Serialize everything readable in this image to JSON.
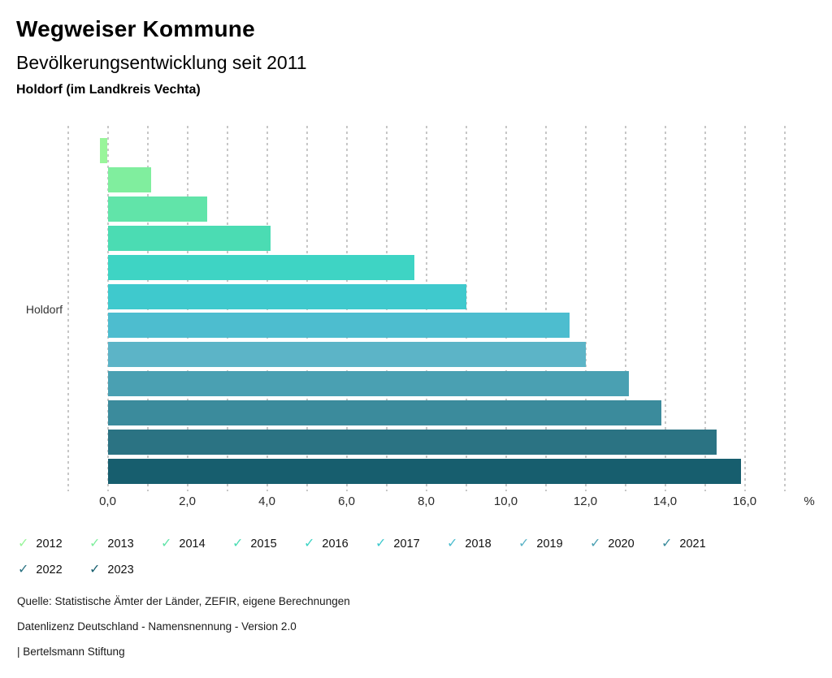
{
  "header": {
    "title": "Wegweiser Kommune",
    "subtitle": "Bevölkerungsentwicklung seit 2011",
    "region": "Holdorf (im Landkreis Vechta)"
  },
  "chart_data": {
    "type": "bar",
    "orientation": "horizontal",
    "title": "Bevölkerungsentwicklung seit 2011",
    "category": "Holdorf",
    "unit": "%",
    "xlim": [
      -1,
      17
    ],
    "grid": {
      "style": "dashed-vertical",
      "step": 1.0
    },
    "x_ticks": [
      {
        "value": 0,
        "label": "0,0"
      },
      {
        "value": 2,
        "label": "2,0"
      },
      {
        "value": 4,
        "label": "4,0"
      },
      {
        "value": 6,
        "label": "6,0"
      },
      {
        "value": 8,
        "label": "8,0"
      },
      {
        "value": 10,
        "label": "10,0"
      },
      {
        "value": 12,
        "label": "12,0"
      },
      {
        "value": 14,
        "label": "14,0"
      },
      {
        "value": 16,
        "label": "16,0"
      }
    ],
    "legend_position": "bottom",
    "series": [
      {
        "name": "2012",
        "value": -0.2,
        "color": "#99f59b"
      },
      {
        "name": "2013",
        "value": 1.1,
        "color": "#80ee9e"
      },
      {
        "name": "2014",
        "value": 2.5,
        "color": "#61e4a9"
      },
      {
        "name": "2015",
        "value": 4.1,
        "color": "#4bdcb3"
      },
      {
        "name": "2016",
        "value": 7.7,
        "color": "#3ed4c4"
      },
      {
        "name": "2017",
        "value": 9.0,
        "color": "#3fc9cd"
      },
      {
        "name": "2018",
        "value": 11.6,
        "color": "#4dbdcf"
      },
      {
        "name": "2019",
        "value": 12.0,
        "color": "#5cb4c7"
      },
      {
        "name": "2020",
        "value": 13.1,
        "color": "#4aa0b2"
      },
      {
        "name": "2021",
        "value": 13.9,
        "color": "#3b8b9c"
      },
      {
        "name": "2022",
        "value": 15.3,
        "color": "#2b7383"
      },
      {
        "name": "2023",
        "value": 15.9,
        "color": "#175e6e"
      }
    ]
  },
  "y_axis": {
    "label": "Holdorf"
  },
  "footer": {
    "source": "Quelle: Statistische Ämter der Länder, ZEFIR, eigene Berechnungen",
    "license": "Datenlizenz Deutschland - Namensnennung - Version 2.0",
    "attribution": "| Bertelsmann Stiftung"
  }
}
